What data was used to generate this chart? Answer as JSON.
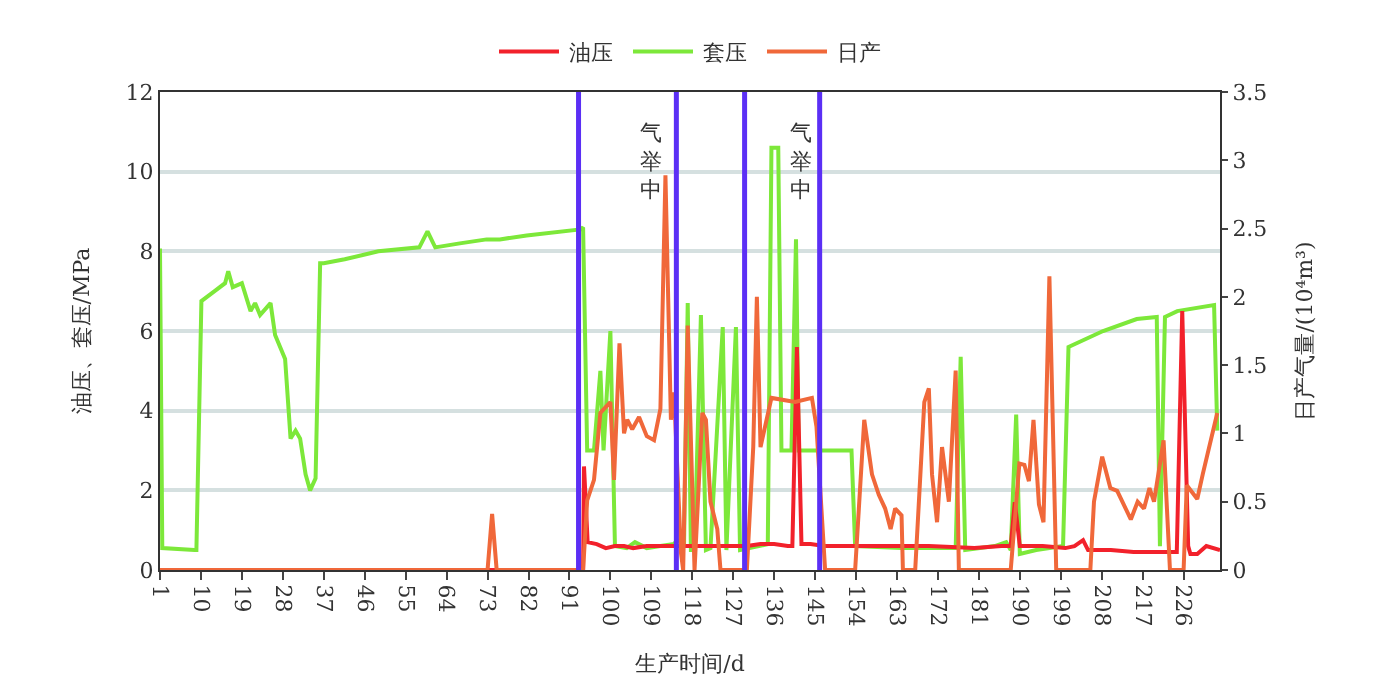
{
  "chart_data": {
    "type": "line",
    "xlabel": "生产时间/d",
    "ylabel": "油压、套压/MPa",
    "y2label": "日产气量/(10⁴m³)",
    "xlim": [
      1,
      234
    ],
    "xticks": [
      1,
      10,
      19,
      28,
      37,
      46,
      55,
      64,
      73,
      82,
      91,
      100,
      109,
      118,
      127,
      136,
      145,
      154,
      163,
      172,
      181,
      190,
      199,
      208,
      217,
      226
    ],
    "ylim": [
      0,
      12
    ],
    "yticks": [
      0,
      2,
      4,
      6,
      8,
      10,
      12
    ],
    "y2lim": [
      0,
      3.5
    ],
    "y2ticks": [
      0,
      0.5,
      1,
      1.5,
      2,
      2.5,
      3,
      3.5
    ],
    "grid": "y",
    "legend": "top",
    "marker": "none",
    "line_style": "solid",
    "series": [
      {
        "name": "油压",
        "color": "#f2212b",
        "axis": "y",
        "x": [
          1,
          94,
          94.2,
          95,
          97,
          99,
          101,
          103,
          105,
          108,
          111,
          114,
          116,
          118,
          121,
          124,
          127,
          130,
          133,
          136,
          139,
          140,
          141,
          142,
          144,
          147,
          150,
          153,
          160,
          170,
          180,
          186,
          188,
          188.9,
          190,
          195,
          200,
          202,
          203.9,
          205,
          210,
          215,
          220,
          224.5,
          225.7,
          227,
          227.5,
          229,
          231,
          234
        ],
        "values": [
          0,
          0,
          2.6,
          0.7,
          0.65,
          0.55,
          0.6,
          0.6,
          0.55,
          0.6,
          0.6,
          0.6,
          0.6,
          0.6,
          0.6,
          0.6,
          0.6,
          0.6,
          0.65,
          0.65,
          0.6,
          0.6,
          5.6,
          0.65,
          0.65,
          0.6,
          0.6,
          0.6,
          0.6,
          0.6,
          0.55,
          0.6,
          0.6,
          1.7,
          0.6,
          0.6,
          0.55,
          0.6,
          0.75,
          0.5,
          0.5,
          0.45,
          0.45,
          0.45,
          6.5,
          0.6,
          0.4,
          0.4,
          0.6,
          0.5
        ]
      },
      {
        "name": "套压",
        "color": "#7de83a",
        "axis": "y",
        "x": [
          1,
          1.5,
          8.6,
          9,
          10.1,
          13,
          15.3,
          16,
          17,
          19,
          20.9,
          21.9,
          23,
          25.3,
          26.3,
          28.5,
          29.7,
          30.8,
          31.8,
          33,
          34,
          35.2,
          36.2,
          37,
          41.6,
          49,
          58,
          59.8,
          61.5,
          66.9,
          72.8,
          75.7,
          81.6,
          93.4,
          94,
          94.9,
          96.4,
          97.8,
          98.5,
          100,
          101,
          103.6,
          105.4,
          108,
          111,
          114,
          114.6,
          116.2,
          117,
          117.7,
          118.5,
          119.9,
          121,
          122,
          124.7,
          125.5,
          127.6,
          128.5,
          134.6,
          135.4,
          136.9,
          137.6,
          139.8,
          140.8,
          141.4,
          153,
          153.8,
          164,
          175.9,
          177,
          178,
          184.5,
          187,
          188,
          189.2,
          190,
          193.6,
          199.5,
          200.7,
          208.3,
          215.7,
          220.1,
          220.8,
          221.9,
          224.6,
          232.7,
          233.4
        ],
        "values": [
          8.07,
          0.55,
          0.5,
          0.5,
          6.75,
          7.0,
          7.2,
          7.5,
          7.1,
          7.2,
          6.5,
          6.7,
          6.4,
          6.7,
          5.9,
          5.3,
          3.3,
          3.5,
          3.3,
          2.4,
          2.0,
          2.3,
          7.7,
          7.7,
          7.8,
          8.0,
          8.1,
          8.5,
          8.1,
          8.2,
          8.3,
          8.3,
          8.4,
          8.55,
          8.6,
          3.0,
          3.0,
          5.0,
          3.0,
          6.0,
          0.6,
          0.55,
          0.7,
          0.55,
          0.6,
          0.65,
          0.75,
          0.7,
          6.7,
          0.5,
          0.5,
          6.4,
          0.5,
          0.55,
          6.1,
          0.5,
          6.1,
          0.5,
          0.65,
          10.6,
          10.6,
          3.0,
          3.0,
          8.3,
          3.0,
          3.0,
          0.6,
          0.55,
          0.55,
          5.35,
          0.5,
          0.6,
          0.7,
          0.5,
          3.9,
          0.4,
          0.5,
          0.6,
          5.6,
          6.0,
          6.3,
          6.35,
          0.6,
          6.35,
          6.5,
          6.65,
          3.5
        ]
      },
      {
        "name": "日产",
        "color": "#f0683a",
        "axis": "y2",
        "x": [
          1,
          73,
          74,
          75,
          94,
          94.9,
          96.4,
          97.8,
          100,
          100.8,
          102,
          103,
          103.7,
          104.8,
          106.3,
          108,
          109.6,
          111,
          112.1,
          113.3,
          114,
          115.5,
          116,
          117,
          118.5,
          120.2,
          121,
          122,
          123.5,
          124.2,
          130,
          131.4,
          132.2,
          133,
          135.4,
          140.6,
          144.3,
          145.3,
          147.2,
          153.8,
          155.8,
          157.5,
          159,
          160.4,
          161.6,
          162.6,
          164,
          164.3,
          167,
          169,
          170,
          170.7,
          171.8,
          172.9,
          174.4,
          175.9,
          176.6,
          188,
          189.9,
          191,
          192,
          193,
          194.2,
          195.2,
          196.5,
          198,
          205.5,
          206.3,
          208.1,
          209.9,
          211.4,
          214.4,
          215.9,
          217.3,
          218.5,
          219.5,
          221.6,
          223,
          226,
          226.7,
          229,
          230.2,
          233.4
        ],
        "values": [
          0,
          0,
          0.41,
          0,
          0,
          0.51,
          0.66,
          1.15,
          1.23,
          0.66,
          1.66,
          1.0,
          1.1,
          1.03,
          1.12,
          0.98,
          0.95,
          1.18,
          2.89,
          1.1,
          1.3,
          0.13,
          0,
          1.79,
          0,
          1.15,
          1.1,
          0.5,
          0.3,
          0,
          0,
          0.9,
          2.0,
          0.9,
          1.26,
          1.23,
          1.26,
          1.05,
          0,
          0,
          1.1,
          0.7,
          0.55,
          0.45,
          0.3,
          0.45,
          0.4,
          0,
          0,
          1.23,
          1.33,
          0.7,
          0.35,
          0.9,
          0.5,
          1.46,
          0,
          0,
          0.78,
          0.77,
          0.65,
          1.1,
          0.48,
          0.35,
          2.15,
          0,
          0,
          0.5,
          0.83,
          0.6,
          0.58,
          0.37,
          0.5,
          0.45,
          0.6,
          0.5,
          0.95,
          0,
          0,
          0.62,
          0.52,
          0.7,
          1.15
        ]
      }
    ],
    "ref_lines": [
      {
        "axis": "x",
        "value": 93,
        "color": "#5b2ff5"
      },
      {
        "axis": "x",
        "value": 114.5,
        "color": "#5b2ff5"
      },
      {
        "axis": "x",
        "value": 129.5,
        "color": "#5b2ff5"
      },
      {
        "axis": "x",
        "value": 146,
        "color": "#5b2ff5"
      }
    ],
    "annotations": [
      "气举中",
      "气举中"
    ]
  }
}
